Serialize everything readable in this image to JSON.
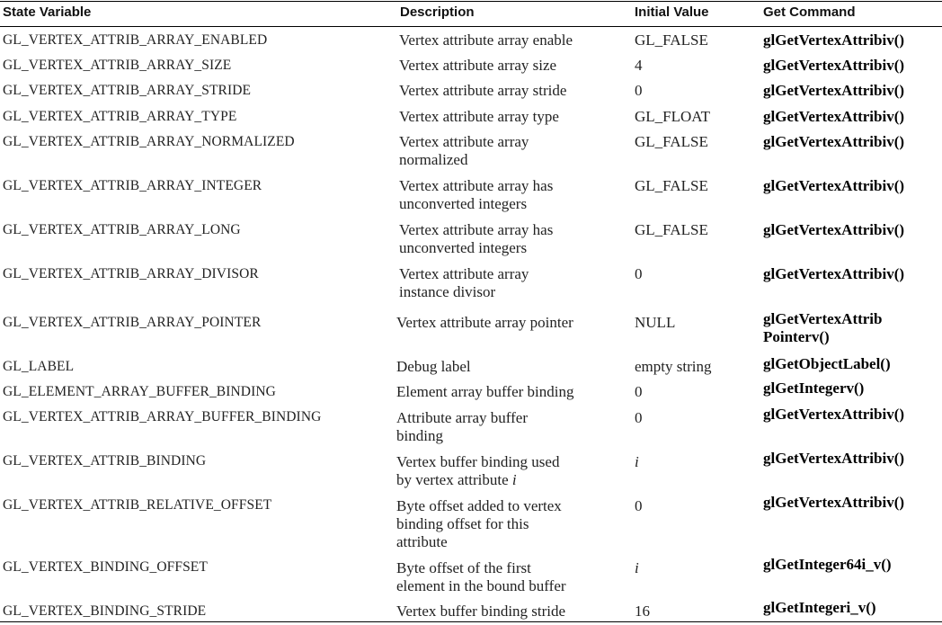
{
  "headers": {
    "state_variable": "State Variable",
    "description": "Description",
    "initial_value": "Initial Value",
    "get_command": "Get Command"
  },
  "rows": [
    {
      "variable": "GL_VERTEX_ATTRIB_ARRAY_ENABLED",
      "description": [
        "Vertex attribute array enable"
      ],
      "initial": "GL_FALSE",
      "command": [
        "glGetVertexAttribiv()"
      ]
    },
    {
      "variable": "GL_VERTEX_ATTRIB_ARRAY_SIZE",
      "description": [
        "Vertex attribute array size"
      ],
      "initial": "4",
      "command": [
        "glGetVertexAttribiv()"
      ]
    },
    {
      "variable": "GL_VERTEX_ATTRIB_ARRAY_STRIDE",
      "description": [
        "Vertex attribute array stride"
      ],
      "initial": "0",
      "command": [
        "glGetVertexAttribiv()"
      ]
    },
    {
      "variable": "GL_VERTEX_ATTRIB_ARRAY_TYPE",
      "description": [
        "Vertex attribute array type"
      ],
      "initial": "GL_FLOAT",
      "command": [
        "glGetVertexAttribiv()"
      ]
    },
    {
      "variable": "GL_VERTEX_ATTRIB_ARRAY_NORMALIZED",
      "description": [
        "Vertex attribute array",
        "normalized"
      ],
      "initial": "GL_FALSE",
      "command": [
        "glGetVertexAttribiv()"
      ]
    },
    {
      "variable": "GL_VERTEX_ATTRIB_ARRAY_INTEGER",
      "description": [
        "Vertex attribute array has",
        "unconverted integers"
      ],
      "initial": "GL_FALSE",
      "command": [
        "glGetVertexAttribiv()"
      ]
    },
    {
      "variable": "GL_VERTEX_ATTRIB_ARRAY_LONG",
      "description": [
        "Vertex attribute array has",
        "unconverted integers"
      ],
      "initial": "GL_FALSE",
      "command": [
        "glGetVertexAttribiv()"
      ]
    },
    {
      "variable": "GL_VERTEX_ATTRIB_ARRAY_DIVISOR",
      "description": [
        "Vertex attribute array",
        "instance divisor"
      ],
      "initial": "0",
      "command": [
        "glGetVertexAttribiv()"
      ]
    },
    {
      "variable": "GL_VERTEX_ATTRIB_ARRAY_POINTER",
      "description": [
        "Vertex attribute array pointer"
      ],
      "initial": "NULL",
      "command": [
        "glGetVertexAttrib",
        "Pointerv()"
      ]
    },
    {
      "variable": "GL_LABEL",
      "description": [
        "Debug label"
      ],
      "initial": "empty string",
      "command": [
        "glGetObjectLabel()"
      ]
    },
    {
      "variable": "GL_ELEMENT_ARRAY_BUFFER_BINDING",
      "description": [
        "Element array buffer binding"
      ],
      "initial": "0",
      "command": [
        "glGetIntegerv()"
      ]
    },
    {
      "variable": "GL_VERTEX_ATTRIB_ARRAY_BUFFER_BINDING",
      "description": [
        "Attribute array buffer",
        "binding"
      ],
      "initial": "0",
      "command": [
        "glGetVertexAttribiv()"
      ]
    },
    {
      "variable": "GL_VERTEX_ATTRIB_BINDING",
      "description": [
        "Vertex buffer binding used",
        "by vertex attribute i"
      ],
      "initial": "i",
      "command": [
        "glGetVertexAttribiv()"
      ]
    },
    {
      "variable": "GL_VERTEX_ATTRIB_RELATIVE_OFFSET",
      "description": [
        "Byte offset added to vertex",
        "binding offset for this",
        "attribute"
      ],
      "initial": "0",
      "command": [
        "glGetVertexAttribiv()"
      ]
    },
    {
      "variable": "GL_VERTEX_BINDING_OFFSET",
      "description": [
        "Byte offset of the first",
        "element in the bound buffer"
      ],
      "initial": "i",
      "command": [
        "glGetInteger64i_v()"
      ]
    },
    {
      "variable": "GL_VERTEX_BINDING_STRIDE",
      "description": [
        "Vertex buffer binding stride"
      ],
      "initial": "16",
      "command": [
        "glGetIntegeri_v()"
      ]
    }
  ]
}
